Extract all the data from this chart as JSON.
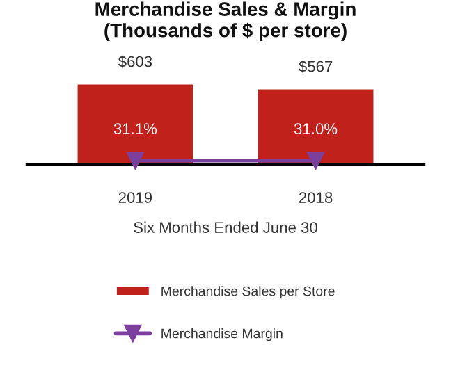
{
  "chart_data": {
    "type": "bar",
    "title": "Merchandise Sales & Margin\n(Thousands of $ per store)",
    "xlabel": "Six Months Ended June 30",
    "categories": [
      "2019",
      "2018"
    ],
    "series": [
      {
        "name": "Merchandise Sales per Store",
        "color": "#c0211a",
        "values": [
          603,
          567
        ],
        "value_labels": [
          "$603",
          "$567"
        ]
      },
      {
        "name": "Merchandise Margin",
        "type": "line",
        "color": "#7b3f9e",
        "marker": "triangle",
        "values": [
          31.1,
          31.0
        ],
        "value_labels": [
          "31.1%",
          "31.0%"
        ]
      }
    ],
    "tick_labels": "x",
    "legend": "bottom",
    "grid": false
  }
}
